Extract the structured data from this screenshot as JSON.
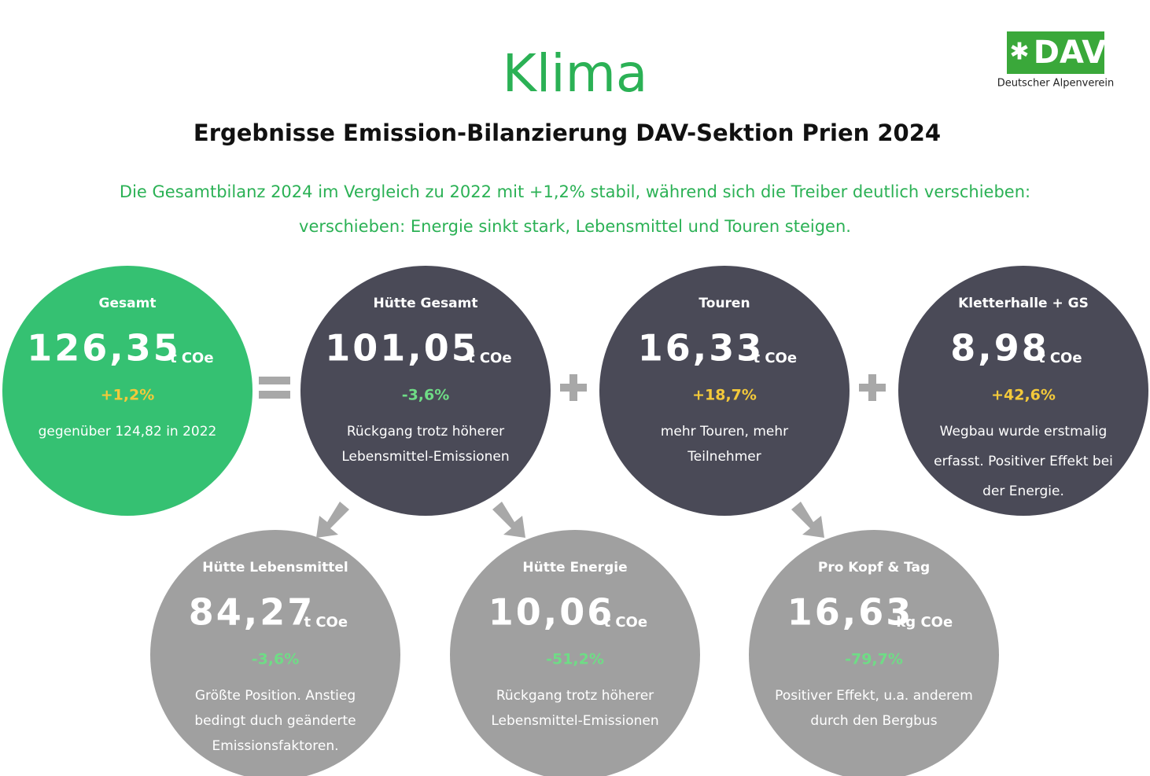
{
  "header": {
    "title": "Klima",
    "subtitle": "Ergebnisse Emission-Bilanzierung DAV-Sektion Prien 2024",
    "intro": [
      "Die Gesamtbilanz 2024 im Vergleich zu 2022 mit +1,2% stabil, während sich die Treiber deutlich verschieben:",
      "verschieben: Energie sinkt stark, Lebensmittel und Touren steigen."
    ]
  },
  "logo": {
    "mark": "DAV",
    "name": "Deutscher Alpenverein"
  },
  "circles": [
    {
      "title": "Gesamt",
      "value": "126,35",
      "unit": "t COe",
      "change": "+1,2%",
      "text": [
        "gegenüber 124,82 in 2022"
      ],
      "fill": "#35c172",
      "change_color": "#f3c93a"
    },
    {
      "title": "Hütte Gesamt",
      "value": "101,05",
      "unit": "t COe",
      "change": "-3,6%",
      "text": [
        "Rückgang trotz höherer",
        "Lebensmittel-Emissionen"
      ],
      "fill": "#4a4a57",
      "change_color": "#6fdc86"
    },
    {
      "title": "Touren",
      "value": "16,33",
      "unit": "t COe",
      "change": "+18,7%",
      "text": [
        "mehr Touren, mehr",
        "Teilnehmer"
      ],
      "fill": "#4a4a57",
      "change_color": "#f3c93a"
    },
    {
      "title": "Kletterhalle + GS",
      "value": "8,98",
      "unit": "t COe",
      "change": "+42,6%",
      "text": [
        "Wegbau wurde erstmalig",
        "erfasst. Positiver Effekt bei",
        "der Energie."
      ],
      "fill": "#4a4a57",
      "change_color": "#f3c93a"
    },
    {
      "title": "Hütte Lebensmittel",
      "value": "84,27",
      "unit": "t COe",
      "change": "-3,6%",
      "text": [
        "Größte Position. Anstieg",
        "bedingt duch geänderte",
        "Emissionsfaktoren."
      ],
      "fill": "#a0a0a0",
      "change_color": "#6fdc86"
    },
    {
      "title": "Hütte Energie",
      "value": "10,06",
      "unit": "t COe",
      "change": "-51,2%",
      "text": [
        "Rückgang trotz höherer",
        "Lebensmittel-Emissionen"
      ],
      "fill": "#a0a0a0",
      "change_color": "#6fdc86"
    },
    {
      "title": "Pro Kopf & Tag",
      "value": "16,63",
      "unit": "kg COe",
      "change": "-79,7%",
      "text": [
        "Positiver Effekt, u.a. anderem",
        "durch den Bergbus"
      ],
      "fill": "#a0a0a0",
      "change_color": "#6fdc86"
    }
  ]
}
